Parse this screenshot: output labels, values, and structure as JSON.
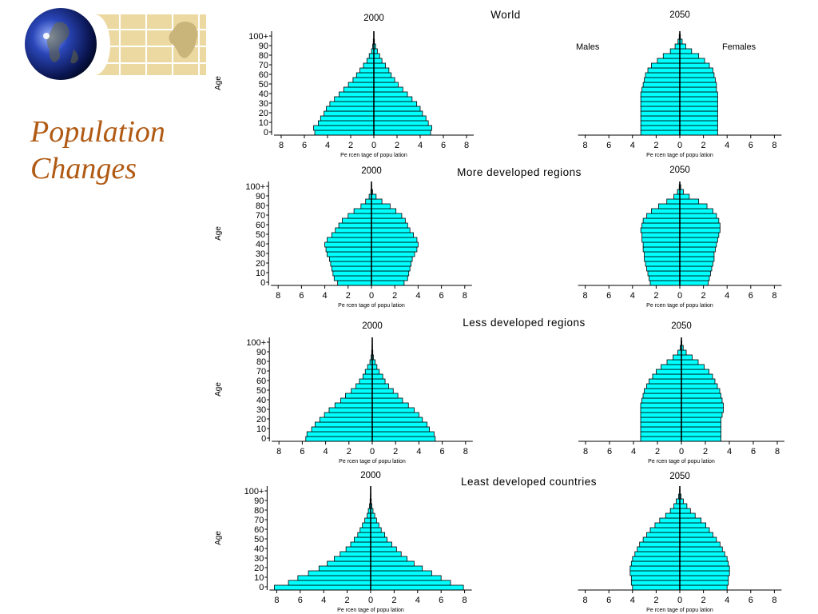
{
  "slide": {
    "title_line1": "Population",
    "title_line2": "Changes"
  },
  "colors": {
    "bar_fill": "#00ffff",
    "title": "#b05a13",
    "map_panel": "#ecd9a2"
  },
  "labels": {
    "males": "Males",
    "females": "Females",
    "ylabel": "Age",
    "xlabel": "Pe rcen tage of popu lation"
  },
  "chart_data": [
    {
      "type": "population-pyramid",
      "section": "World",
      "year": "2000",
      "show_header": true,
      "xlim": [
        -8,
        8
      ],
      "x_ticks": [
        "8",
        "6",
        "4",
        "2",
        "0",
        "2",
        "4",
        "6",
        "8"
      ],
      "y_ticks": [
        "100+",
        "90",
        "80",
        "70",
        "60",
        "50",
        "40",
        "30",
        "20",
        "10",
        "0"
      ],
      "age_groups": [
        "0-4",
        "5-9",
        "10-14",
        "15-19",
        "20-24",
        "25-29",
        "30-34",
        "35-39",
        "40-44",
        "45-49",
        "50-54",
        "55-59",
        "60-64",
        "65-69",
        "70-74",
        "75-79",
        "80-84",
        "85-89",
        "90-94",
        "95-99",
        "100+"
      ],
      "males": [
        5.1,
        5.2,
        4.8,
        4.6,
        4.3,
        4.1,
        3.8,
        3.4,
        3.0,
        2.6,
        2.2,
        1.8,
        1.5,
        1.2,
        0.9,
        0.6,
        0.4,
        0.2,
        0.1,
        0.05,
        0.01
      ],
      "females": [
        4.9,
        5.0,
        4.7,
        4.5,
        4.2,
        4.0,
        3.7,
        3.3,
        2.9,
        2.5,
        2.1,
        1.8,
        1.5,
        1.3,
        1.0,
        0.7,
        0.5,
        0.3,
        0.15,
        0.05,
        0.01
      ]
    },
    {
      "type": "population-pyramid",
      "section": "World",
      "year": "2050",
      "show_header": false,
      "xlim": [
        -8,
        8
      ],
      "x_ticks": [
        "8",
        "6",
        "4",
        "2",
        "0",
        "2",
        "4",
        "6",
        "8"
      ],
      "y_ticks": [],
      "age_groups": [
        "0-4",
        "5-9",
        "10-14",
        "15-19",
        "20-24",
        "25-29",
        "30-34",
        "35-39",
        "40-44",
        "45-49",
        "50-54",
        "55-59",
        "60-64",
        "65-69",
        "70-74",
        "75-79",
        "80-84",
        "85-89",
        "90-94",
        "95-99",
        "100+"
      ],
      "males": [
        3.3,
        3.3,
        3.3,
        3.3,
        3.3,
        3.3,
        3.3,
        3.3,
        3.3,
        3.2,
        3.1,
        3.0,
        2.9,
        2.7,
        2.4,
        1.9,
        1.4,
        0.8,
        0.4,
        0.15,
        0.05
      ],
      "females": [
        3.2,
        3.2,
        3.2,
        3.2,
        3.2,
        3.2,
        3.2,
        3.2,
        3.2,
        3.1,
        3.1,
        3.0,
        2.9,
        2.8,
        2.5,
        2.1,
        1.6,
        1.0,
        0.5,
        0.2,
        0.05
      ]
    },
    {
      "type": "population-pyramid",
      "section": "More developed regions",
      "year": "2000",
      "show_header": true,
      "xlim": [
        -8,
        8
      ],
      "x_ticks": [
        "8",
        "6",
        "4",
        "2",
        "0",
        "2",
        "4",
        "6",
        "8"
      ],
      "y_ticks": [
        "100+",
        "90",
        "80",
        "70",
        "60",
        "50",
        "40",
        "30",
        "20",
        "10",
        "0"
      ],
      "age_groups": [
        "0-4",
        "5-9",
        "10-14",
        "15-19",
        "20-24",
        "25-29",
        "30-34",
        "35-39",
        "40-44",
        "45-49",
        "50-54",
        "55-59",
        "60-64",
        "65-69",
        "70-74",
        "75-79",
        "80-84",
        "85-89",
        "90-94",
        "95-99",
        "100+"
      ],
      "males": [
        2.9,
        3.2,
        3.3,
        3.4,
        3.5,
        3.6,
        3.8,
        3.9,
        4.0,
        3.8,
        3.4,
        3.1,
        2.8,
        2.5,
        2.0,
        1.5,
        0.9,
        0.5,
        0.2,
        0.05,
        0.01
      ],
      "females": [
        2.8,
        3.1,
        3.2,
        3.3,
        3.4,
        3.5,
        3.7,
        3.9,
        4.0,
        3.9,
        3.6,
        3.3,
        3.1,
        2.9,
        2.6,
        2.1,
        1.6,
        0.9,
        0.4,
        0.1,
        0.02
      ]
    },
    {
      "type": "population-pyramid",
      "section": "More developed regions",
      "year": "2050",
      "show_header": false,
      "xlim": [
        -8,
        8
      ],
      "x_ticks": [
        "8",
        "6",
        "4",
        "2",
        "0",
        "2",
        "4",
        "6",
        "8"
      ],
      "y_ticks": [],
      "age_groups": [
        "0-4",
        "5-9",
        "10-14",
        "15-19",
        "20-24",
        "25-29",
        "30-34",
        "35-39",
        "40-44",
        "45-49",
        "50-54",
        "55-59",
        "60-64",
        "65-69",
        "70-74",
        "75-79",
        "80-84",
        "85-89",
        "90-94",
        "95-99",
        "100+"
      ],
      "males": [
        2.5,
        2.6,
        2.7,
        2.8,
        2.9,
        3.0,
        3.0,
        3.1,
        3.1,
        3.2,
        3.2,
        3.3,
        3.2,
        3.1,
        2.8,
        2.4,
        1.8,
        1.1,
        0.5,
        0.2,
        0.05
      ],
      "females": [
        2.4,
        2.5,
        2.6,
        2.7,
        2.8,
        2.9,
        2.9,
        3.0,
        3.1,
        3.2,
        3.3,
        3.4,
        3.4,
        3.3,
        3.1,
        2.8,
        2.3,
        1.6,
        0.8,
        0.3,
        0.08
      ]
    },
    {
      "type": "population-pyramid",
      "section": "Less developed regions",
      "year": "2000",
      "show_header": true,
      "xlim": [
        -8,
        8
      ],
      "x_ticks": [
        "8",
        "6",
        "4",
        "2",
        "0",
        "2",
        "4",
        "6",
        "8"
      ],
      "y_ticks": [
        "100+",
        "90",
        "80",
        "70",
        "60",
        "50",
        "40",
        "30",
        "20",
        "10",
        "0"
      ],
      "age_groups": [
        "0-4",
        "5-9",
        "10-14",
        "15-19",
        "20-24",
        "25-29",
        "30-34",
        "35-39",
        "40-44",
        "45-49",
        "50-54",
        "55-59",
        "60-64",
        "65-69",
        "70-74",
        "75-79",
        "80-84",
        "85-89",
        "90-94",
        "95-99",
        "100+"
      ],
      "males": [
        5.7,
        5.6,
        5.2,
        4.9,
        4.5,
        4.1,
        3.7,
        3.2,
        2.7,
        2.3,
        1.8,
        1.4,
        1.1,
        0.8,
        0.6,
        0.4,
        0.2,
        0.1,
        0.05,
        0.02,
        0.01
      ],
      "females": [
        5.4,
        5.3,
        4.9,
        4.7,
        4.3,
        4.0,
        3.6,
        3.1,
        2.6,
        2.2,
        1.8,
        1.4,
        1.1,
        0.9,
        0.6,
        0.4,
        0.25,
        0.1,
        0.05,
        0.02,
        0.01
      ]
    },
    {
      "type": "population-pyramid",
      "section": "Less developed regions",
      "year": "2050",
      "show_header": false,
      "xlim": [
        -8,
        8
      ],
      "x_ticks": [
        "8",
        "6",
        "4",
        "2",
        "0",
        "2",
        "4",
        "6",
        "8"
      ],
      "y_ticks": [],
      "age_groups": [
        "0-4",
        "5-9",
        "10-14",
        "15-19",
        "20-24",
        "25-29",
        "30-34",
        "35-39",
        "40-44",
        "45-49",
        "50-54",
        "55-59",
        "60-64",
        "65-69",
        "70-74",
        "75-79",
        "80-84",
        "85-89",
        "90-94",
        "95-99",
        "100+"
      ],
      "males": [
        3.4,
        3.4,
        3.4,
        3.4,
        3.4,
        3.4,
        3.4,
        3.4,
        3.3,
        3.2,
        3.1,
        2.9,
        2.7,
        2.4,
        2.1,
        1.7,
        1.2,
        0.7,
        0.3,
        0.1,
        0.03
      ],
      "females": [
        3.3,
        3.3,
        3.3,
        3.3,
        3.3,
        3.4,
        3.5,
        3.5,
        3.4,
        3.3,
        3.2,
        3.0,
        2.8,
        2.6,
        2.3,
        1.9,
        1.4,
        0.9,
        0.4,
        0.15,
        0.04
      ]
    },
    {
      "type": "population-pyramid",
      "section": "Least developed countries",
      "year": "2000",
      "show_header": true,
      "xlim": [
        -8,
        8
      ],
      "x_ticks": [
        "8",
        "6",
        "4",
        "2",
        "0",
        "2",
        "4",
        "6",
        "8"
      ],
      "y_ticks": [
        "100+",
        "90",
        "80",
        "70",
        "60",
        "50",
        "40",
        "30",
        "20",
        "10",
        "0"
      ],
      "age_groups": [
        "0-4",
        "5-9",
        "10-14",
        "15-19",
        "20-24",
        "25-29",
        "30-34",
        "35-39",
        "40-44",
        "45-49",
        "50-54",
        "55-59",
        "60-64",
        "65-69",
        "70-74",
        "75-79",
        "80-84",
        "85-89",
        "90-94",
        "95-99",
        "100+"
      ],
      "males": [
        8.2,
        7.0,
        6.2,
        5.3,
        4.4,
        3.7,
        3.1,
        2.6,
        2.1,
        1.7,
        1.4,
        1.1,
        0.9,
        0.7,
        0.5,
        0.3,
        0.2,
        0.1,
        0.05,
        0.02,
        0.01
      ],
      "females": [
        7.9,
        6.8,
        6.0,
        5.2,
        4.4,
        3.7,
        3.1,
        2.6,
        2.2,
        1.8,
        1.4,
        1.2,
        0.9,
        0.7,
        0.5,
        0.35,
        0.2,
        0.1,
        0.05,
        0.02,
        0.01
      ]
    },
    {
      "type": "population-pyramid",
      "section": "Least developed countries",
      "year": "2050",
      "show_header": false,
      "xlim": [
        -8,
        8
      ],
      "x_ticks": [
        "8",
        "6",
        "4",
        "2",
        "0",
        "2",
        "4",
        "6",
        "8"
      ],
      "y_ticks": [],
      "age_groups": [
        "0-4",
        "5-9",
        "10-14",
        "15-19",
        "20-24",
        "25-29",
        "30-34",
        "35-39",
        "40-44",
        "45-49",
        "50-54",
        "55-59",
        "60-64",
        "65-69",
        "70-74",
        "75-79",
        "80-84",
        "85-89",
        "90-94",
        "95-99",
        "100+"
      ],
      "males": [
        4.0,
        4.1,
        4.1,
        4.2,
        4.2,
        4.1,
        4.0,
        3.8,
        3.6,
        3.4,
        3.1,
        2.8,
        2.5,
        2.1,
        1.7,
        1.2,
        0.8,
        0.5,
        0.3,
        0.1,
        0.02
      ],
      "females": [
        4.0,
        4.1,
        4.1,
        4.2,
        4.2,
        4.1,
        4.0,
        3.8,
        3.6,
        3.4,
        3.1,
        2.8,
        2.5,
        2.2,
        1.8,
        1.3,
        0.9,
        0.6,
        0.3,
        0.1,
        0.02
      ]
    }
  ]
}
